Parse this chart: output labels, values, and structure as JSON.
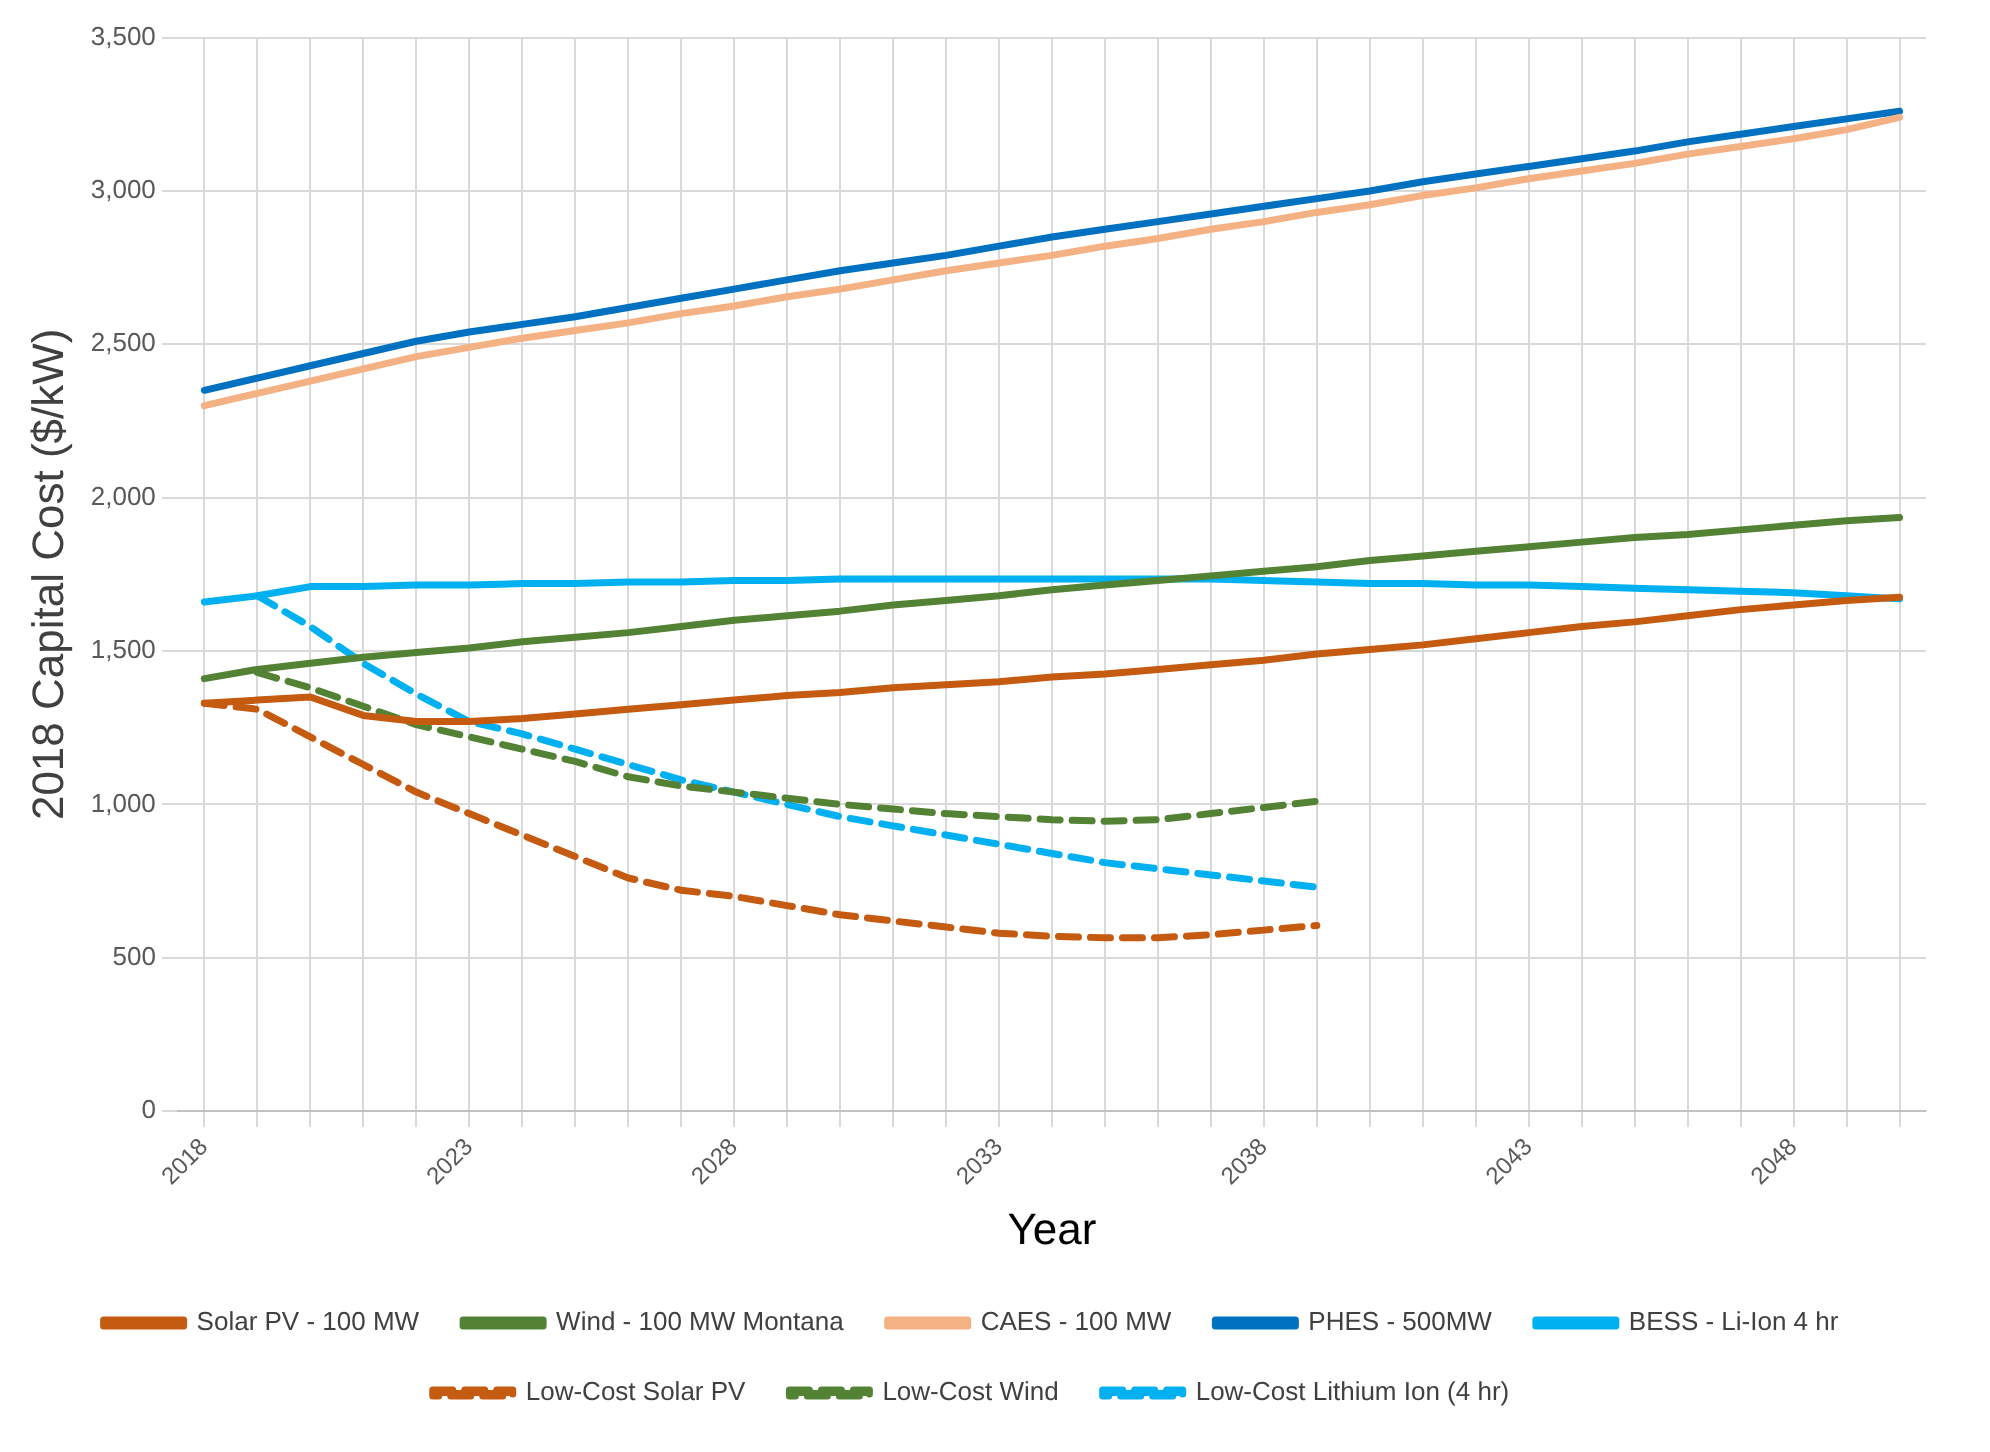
{
  "chart_data": {
    "type": "line",
    "xlabel": "Year",
    "ylabel": "2018 Capital Cost ($/kW)",
    "categories": [
      "2018",
      null,
      null,
      null,
      null,
      "2023",
      null,
      null,
      null,
      null,
      "2028",
      null,
      null,
      null,
      null,
      "2033",
      null,
      null,
      null,
      null,
      "2038",
      null,
      null,
      null,
      null,
      "2043",
      null,
      null,
      null,
      null,
      "2048",
      null,
      null
    ],
    "ylim": [
      0,
      3500
    ],
    "yticks": [
      0,
      500,
      {
        "value": 1000,
        "label": "1,000"
      },
      {
        "value": 1500,
        "label": "1,500"
      },
      {
        "value": 2000,
        "label": "2,000"
      },
      {
        "value": 2500,
        "label": "2,500"
      },
      {
        "value": 3000,
        "label": "3,000"
      },
      {
        "value": 3500,
        "label": "3,500"
      }
    ],
    "grid": true,
    "legend": "bottom",
    "marker": "none",
    "series": [
      {
        "name": "Solar PV - 100 MW",
        "color": "#c55a11",
        "line_style": "solid",
        "values": [
          1330,
          1340,
          1350,
          1290,
          1270,
          1270,
          1280,
          1295,
          1310,
          1325,
          1340,
          1355,
          1365,
          1380,
          1390,
          1400,
          1415,
          1425,
          1440,
          1455,
          1470,
          1490,
          1505,
          1520,
          1540,
          1560,
          1580,
          1595,
          1615,
          1635,
          1650,
          1665,
          1675
        ]
      },
      {
        "name": "Wind - 100 MW Montana",
        "color": "#548235",
        "line_style": "solid",
        "values": [
          1410,
          1440,
          1460,
          1480,
          1495,
          1510,
          1530,
          1545,
          1560,
          1580,
          1600,
          1615,
          1630,
          1650,
          1665,
          1680,
          1700,
          1715,
          1730,
          1745,
          1760,
          1775,
          1795,
          1810,
          1825,
          1840,
          1855,
          1870,
          1880,
          1895,
          1910,
          1925,
          1935
        ]
      },
      {
        "name": "CAES - 100 MW",
        "color": "#f4b183",
        "line_style": "solid",
        "values": [
          2300,
          2340,
          2380,
          2420,
          2460,
          2490,
          2520,
          2545,
          2570,
          2600,
          2625,
          2655,
          2680,
          2710,
          2740,
          2765,
          2790,
          2820,
          2845,
          2875,
          2900,
          2930,
          2955,
          2985,
          3010,
          3040,
          3065,
          3090,
          3120,
          3145,
          3170,
          3200,
          3240
        ]
      },
      {
        "name": "PHES - 500MW",
        "color": "#0070c0",
        "line_style": "solid",
        "values": [
          2350,
          2390,
          2430,
          2470,
          2510,
          2540,
          2565,
          2590,
          2620,
          2650,
          2680,
          2710,
          2740,
          2765,
          2790,
          2820,
          2850,
          2875,
          2900,
          2925,
          2950,
          2975,
          3000,
          3030,
          3055,
          3080,
          3105,
          3130,
          3160,
          3185,
          3210,
          3235,
          3260
        ]
      },
      {
        "name": "BESS - Li-Ion 4 hr",
        "color": "#00b0f0",
        "line_style": "solid",
        "values": [
          1660,
          1680,
          1710,
          1710,
          1715,
          1715,
          1720,
          1720,
          1725,
          1725,
          1730,
          1730,
          1735,
          1735,
          1735,
          1735,
          1735,
          1735,
          1735,
          1735,
          1730,
          1725,
          1720,
          1720,
          1715,
          1715,
          1710,
          1705,
          1700,
          1695,
          1690,
          1680,
          1670
        ]
      },
      {
        "name": "Low-Cost Solar PV",
        "color": "#c55a11",
        "line_style": "dashed",
        "values": [
          1330,
          1310,
          1220,
          1130,
          1040,
          970,
          900,
          830,
          760,
          720,
          700,
          670,
          640,
          620,
          600,
          580,
          570,
          565,
          565,
          575,
          590,
          605,
          null,
          null,
          null,
          null,
          null,
          null,
          null,
          null,
          null,
          null,
          null
        ]
      },
      {
        "name": "Low-Cost Wind",
        "color": "#548235",
        "line_style": "dashed",
        "values": [
          null,
          1430,
          1380,
          1320,
          1260,
          1220,
          1180,
          1140,
          1090,
          1060,
          1040,
          1020,
          1000,
          985,
          970,
          960,
          950,
          945,
          950,
          970,
          990,
          1010,
          null,
          null,
          null,
          null,
          null,
          null,
          null,
          null,
          null,
          null,
          null
        ]
      },
      {
        "name": "Low-Cost Lithium Ion (4 hr)",
        "color": "#00b0f0",
        "line_style": "dashed",
        "values": [
          null,
          1680,
          1580,
          1460,
          1360,
          1270,
          1230,
          1180,
          1130,
          1080,
          1040,
          1000,
          960,
          930,
          900,
          870,
          840,
          810,
          790,
          770,
          750,
          730,
          null,
          null,
          null,
          null,
          null,
          null,
          null,
          null,
          null,
          null,
          null
        ]
      }
    ]
  }
}
